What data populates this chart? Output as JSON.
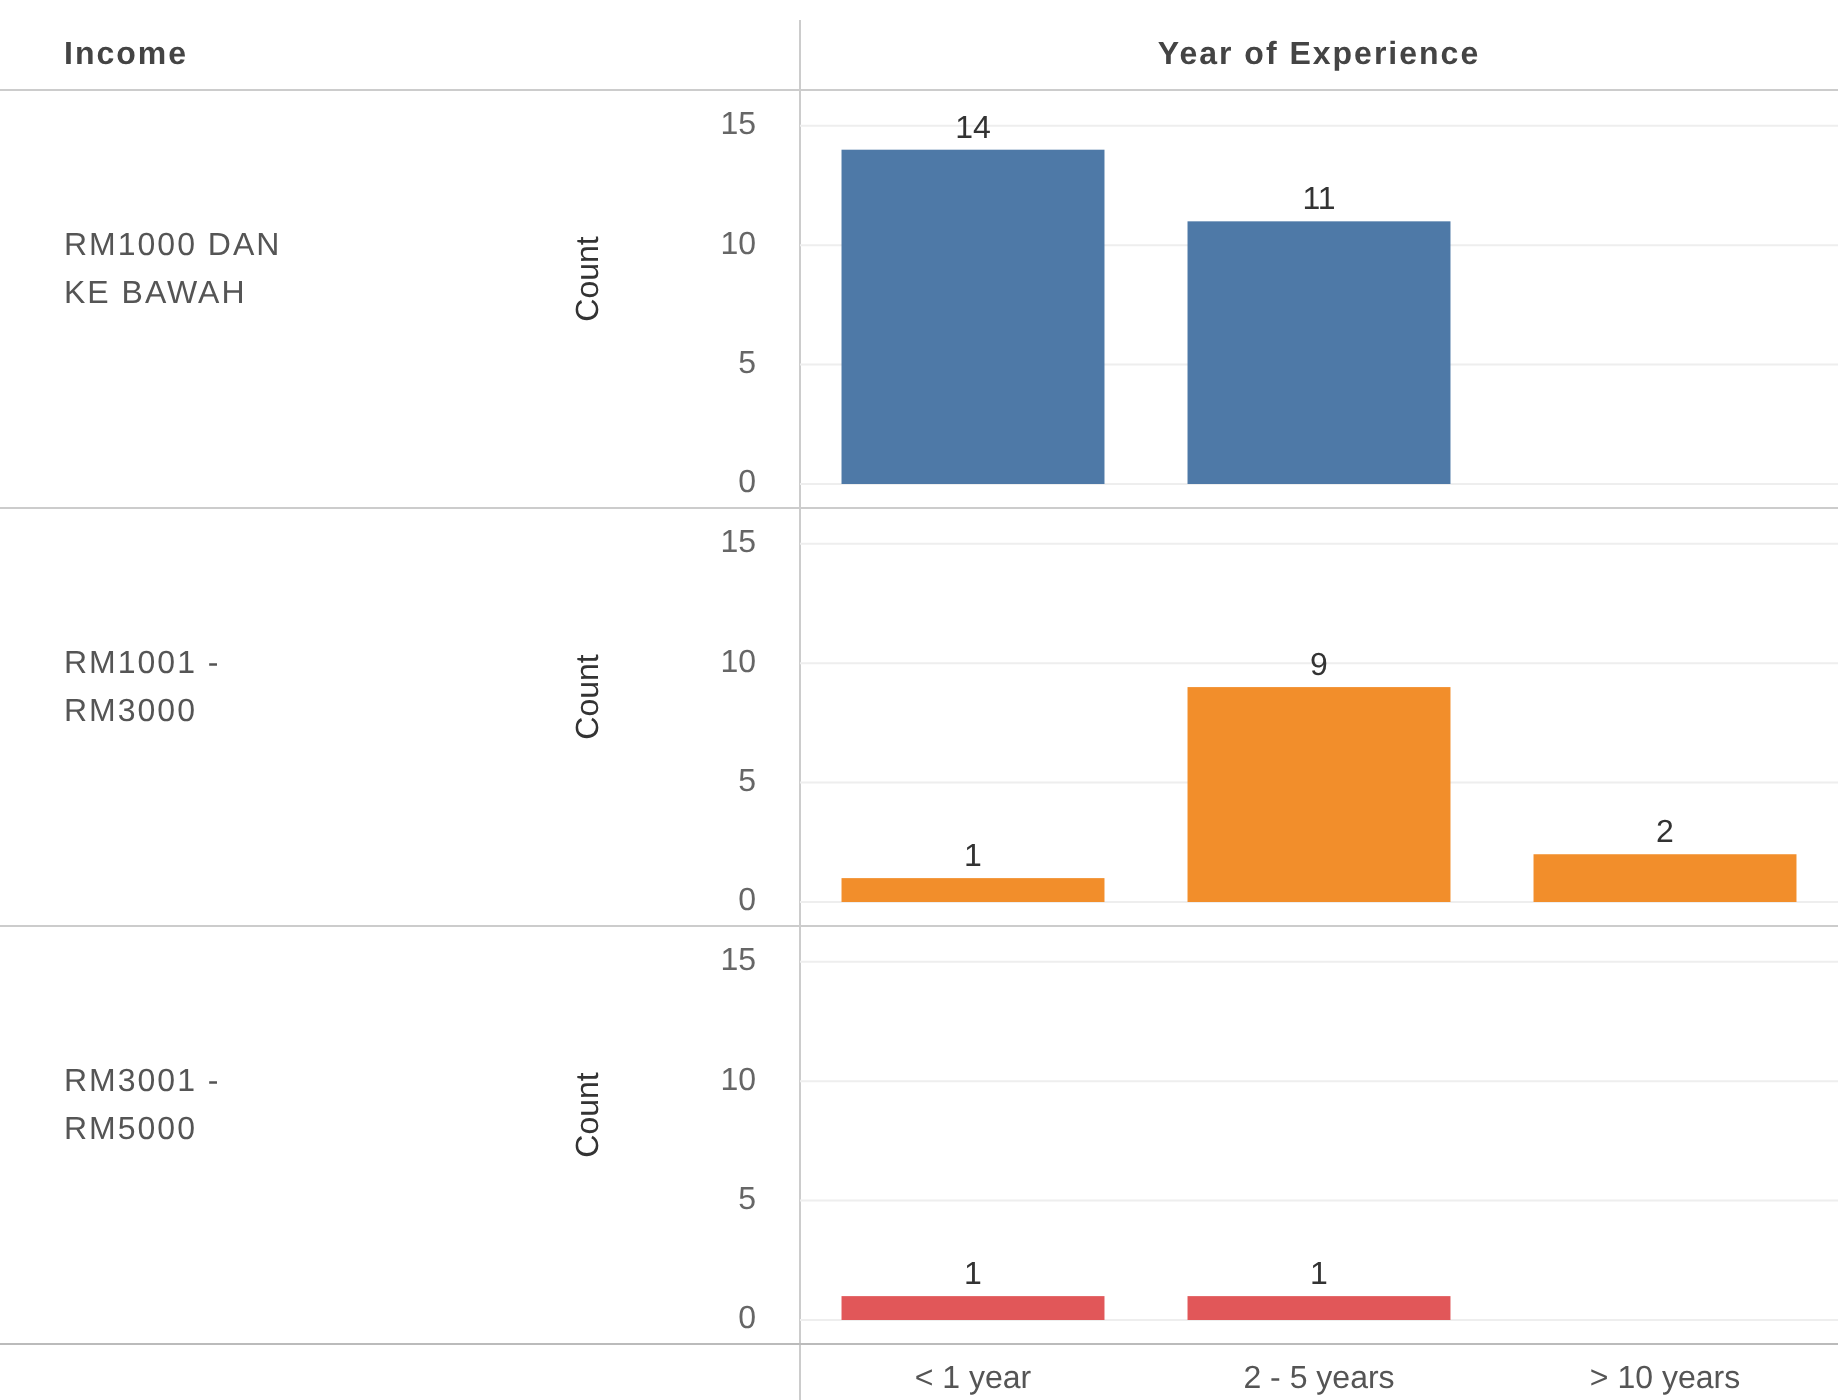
{
  "chart_data": [
    {
      "type": "bar",
      "annotations": [
        "Income",
        "Year of Experience",
        "RM1000 DAN KE BAWAH"
      ],
      "categories": [
        null,
        null,
        null
      ],
      "values": [
        14,
        11,
        null
      ],
      "color": "#4e79a7",
      "ylabel": "Count",
      "ylim": [
        0,
        16.5
      ],
      "yticks": [
        0,
        5,
        10,
        15
      ],
      "grid": "y",
      "data_labels": true,
      "tick_labels": "y"
    },
    {
      "type": "bar",
      "annotations": [
        "RM1001 - RM3000"
      ],
      "categories": [
        null,
        null,
        null
      ],
      "values": [
        1,
        9,
        2
      ],
      "color": "#f28e2b",
      "ylabel": "Count",
      "ylim": [
        0,
        16.5
      ],
      "yticks": [
        0,
        5,
        10,
        15
      ],
      "grid": "y",
      "data_labels": true,
      "tick_labels": "y"
    },
    {
      "type": "bar",
      "annotations": [
        "RM3001 - RM5000"
      ],
      "categories": [
        "< 1 year",
        "2 - 5 years",
        "> 10 years"
      ],
      "values": [
        1,
        1,
        null
      ],
      "color": "#e15759",
      "ylabel": "Count",
      "ylim": [
        0,
        16.5
      ],
      "yticks": [
        0,
        5,
        10,
        15
      ],
      "grid": "y",
      "data_labels": true
    }
  ]
}
